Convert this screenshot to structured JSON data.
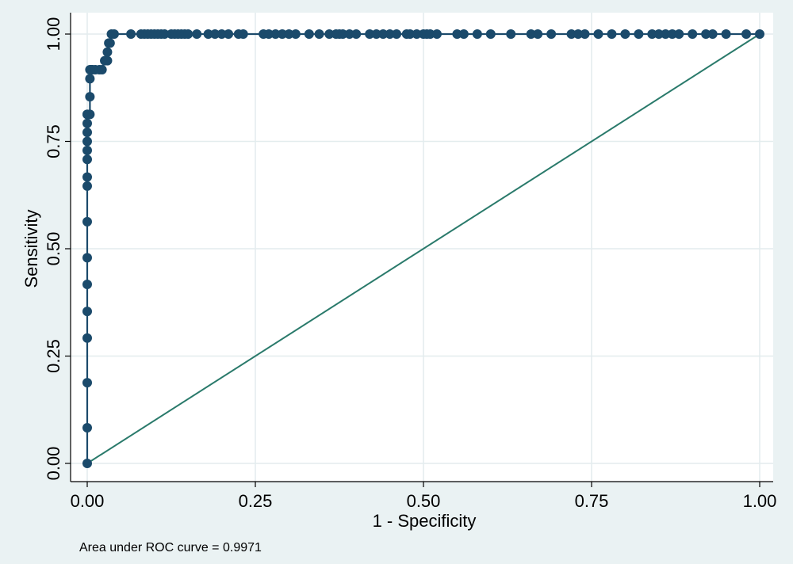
{
  "chart_data": {
    "type": "line",
    "xlabel": "1 - Specificity",
    "ylabel": "Sensitivity",
    "note": "Area under ROC curve = 0.9971",
    "xlim": [
      0,
      1
    ],
    "ylim": [
      0,
      1
    ],
    "x_ticks": [
      "0.00",
      "0.25",
      "0.50",
      "0.75",
      "1.00"
    ],
    "y_ticks": [
      "0.00",
      "0.25",
      "0.50",
      "0.75",
      "1.00"
    ],
    "grid": true,
    "colors": {
      "roc": "#1b4a6b",
      "reference": "#2a7a6b",
      "plot_bg": "#ffffff",
      "outer_bg": "#eaf2f3",
      "grid": "#e3ecee"
    },
    "series": [
      {
        "x": [
          0,
          0,
          0,
          0,
          0,
          0,
          0,
          0,
          0,
          0,
          0,
          0,
          0,
          0,
          0,
          0,
          0,
          0.004,
          0.004,
          0.004,
          0.004,
          0.006,
          0.006,
          0.008,
          0.012,
          0.018,
          0.022,
          0.026,
          0.03,
          0.03,
          0.032,
          0.034,
          0.036,
          0.04,
          0.065,
          0.08,
          0.085,
          0.09,
          0.095,
          0.1,
          0.105,
          0.11,
          0.115,
          0.125,
          0.13,
          0.135,
          0.14,
          0.145,
          0.15,
          0.163,
          0.18,
          0.19,
          0.2,
          0.21,
          0.225,
          0.232,
          0.262,
          0.27,
          0.28,
          0.29,
          0.3,
          0.31,
          0.33,
          0.345,
          0.36,
          0.37,
          0.375,
          0.38,
          0.39,
          0.4,
          0.42,
          0.43,
          0.44,
          0.45,
          0.46,
          0.475,
          0.48,
          0.49,
          0.5,
          0.505,
          0.51,
          0.52,
          0.55,
          0.56,
          0.58,
          0.6,
          0.63,
          0.66,
          0.67,
          0.69,
          0.72,
          0.73,
          0.74,
          0.76,
          0.78,
          0.8,
          0.82,
          0.84,
          0.85,
          0.86,
          0.87,
          0.88,
          0.9,
          0.92,
          0.93,
          0.95,
          0.98,
          1.0
        ],
        "y": [
          0,
          0.083,
          0.188,
          0.292,
          0.354,
          0.417,
          0.479,
          0.563,
          0.646,
          0.667,
          0.708,
          0.729,
          0.75,
          0.771,
          0.792,
          0.813,
          0.813,
          0.813,
          0.854,
          0.896,
          0.917,
          0.917,
          0.917,
          0.917,
          0.917,
          0.917,
          0.917,
          0.938,
          0.938,
          0.958,
          0.979,
          0.979,
          1.0,
          1.0,
          1.0,
          1.0,
          1.0,
          1.0,
          1.0,
          1.0,
          1.0,
          1.0,
          1.0,
          1.0,
          1.0,
          1.0,
          1.0,
          1.0,
          1.0,
          1.0,
          1.0,
          1.0,
          1.0,
          1.0,
          1.0,
          1.0,
          1.0,
          1.0,
          1.0,
          1.0,
          1.0,
          1.0,
          1.0,
          1.0,
          1.0,
          1.0,
          1.0,
          1.0,
          1.0,
          1.0,
          1.0,
          1.0,
          1.0,
          1.0,
          1.0,
          1.0,
          1.0,
          1.0,
          1.0,
          1.0,
          1.0,
          1.0,
          1.0,
          1.0,
          1.0,
          1.0,
          1.0,
          1.0,
          1.0,
          1.0,
          1.0,
          1.0,
          1.0,
          1.0,
          1.0,
          1.0,
          1.0,
          1.0,
          1.0,
          1.0,
          1.0,
          1.0,
          1.0,
          1.0,
          1.0,
          1.0,
          1.0,
          1.0
        ]
      },
      {
        "x": [
          0,
          1
        ],
        "y": [
          0,
          1
        ]
      }
    ]
  }
}
